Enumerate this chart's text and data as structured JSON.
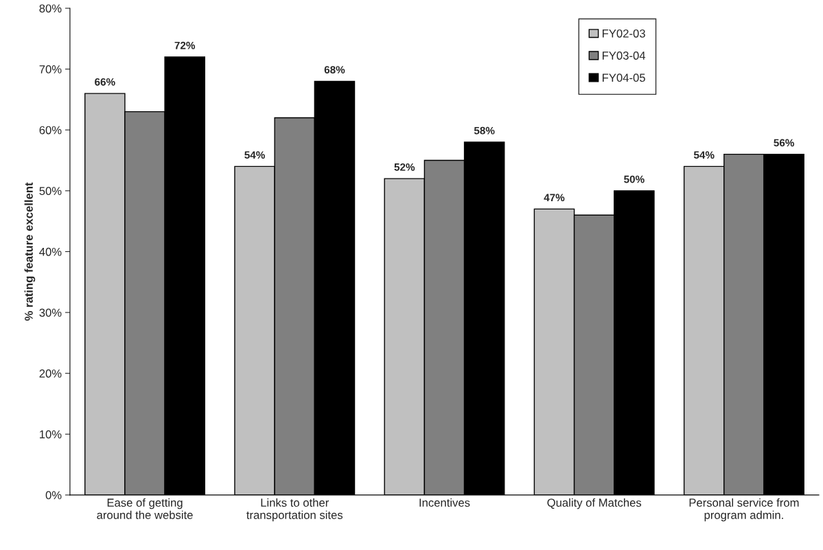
{
  "chart_data": {
    "type": "bar",
    "ylabel": "% rating feature excellent",
    "categories": [
      "Ease of getting\naround the website",
      "Links to other\ntransportation sites",
      "Incentives",
      "Quality of Matches",
      "Personal service from\nprogram admin."
    ],
    "series": [
      {
        "name": "FY02-03",
        "color": "#c0c0c0",
        "values": [
          66,
          54,
          52,
          47,
          54
        ],
        "value_labels": [
          "66%",
          "54%",
          "52%",
          "47%",
          "54%"
        ]
      },
      {
        "name": "FY03-04",
        "color": "#808080",
        "values": [
          63,
          62,
          55,
          46,
          56
        ]
      },
      {
        "name": "FY04-05",
        "color": "#000000",
        "values": [
          72,
          68,
          58,
          50,
          56
        ],
        "value_labels": [
          "72%",
          "68%",
          "58%",
          "50%",
          "56%"
        ]
      }
    ],
    "ylim": [
      0,
      80
    ],
    "yticks": [
      {
        "value": 0,
        "label": "0%"
      },
      {
        "value": 10,
        "label": "10%"
      },
      {
        "value": 20,
        "label": "20%"
      },
      {
        "value": 30,
        "label": "30%"
      },
      {
        "value": 40,
        "label": "40%"
      },
      {
        "value": 50,
        "label": "50%"
      },
      {
        "value": 60,
        "label": "60%"
      },
      {
        "value": 70,
        "label": "70%"
      },
      {
        "value": 80,
        "label": "80%"
      }
    ],
    "grid": false,
    "legend": "top right"
  }
}
